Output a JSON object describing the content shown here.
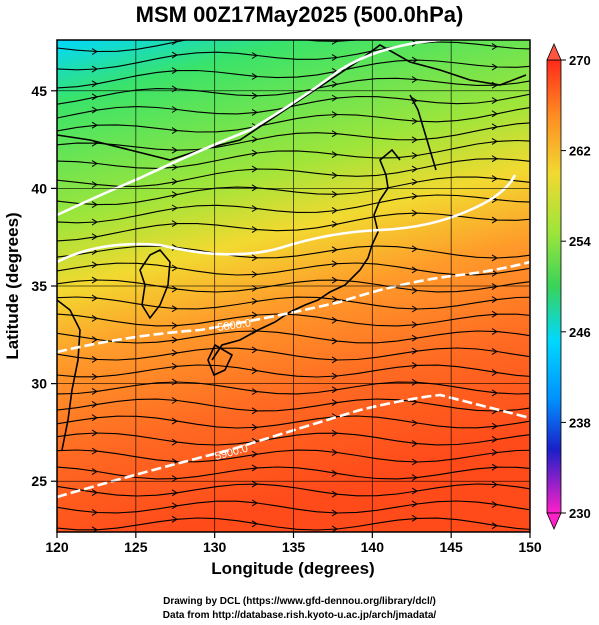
{
  "chart_data": {
    "type": "heatmap",
    "title": "MSM 00Z17May2025 (500.0hPa)",
    "xlabel": "Longitude (degrees)",
    "ylabel": "Latitude  (degrees)",
    "xlim": [
      120,
      150
    ],
    "ylim": [
      22.4,
      47.6
    ],
    "x_ticks": [
      "120",
      "125",
      "130",
      "135",
      "140",
      "145",
      "150"
    ],
    "y_ticks": [
      "25",
      "30",
      "35",
      "40",
      "45"
    ],
    "grid": true,
    "colorbar": {
      "min": 230,
      "max": 270,
      "ticks": [
        "270",
        "262",
        "254",
        "246",
        "238",
        "230"
      ],
      "placement": "right"
    },
    "contour_labels": [
      "5800.0",
      "5900.0"
    ],
    "colors": {
      "cold": "#00d8ff",
      "cool": "#39e36a",
      "mild": "#9ee53a",
      "yellow": "#f2d930",
      "orange": "#ff9a2a",
      "warm": "#ff6a22",
      "hot": "#ff4a1a"
    }
  },
  "credits": {
    "line1": "Drawing by DCL (https://www.gfd-dennou.org/library/dcl/)",
    "line2": "Data from http://database.rish.kyoto-u.ac.jp/arch/jmadata/"
  }
}
